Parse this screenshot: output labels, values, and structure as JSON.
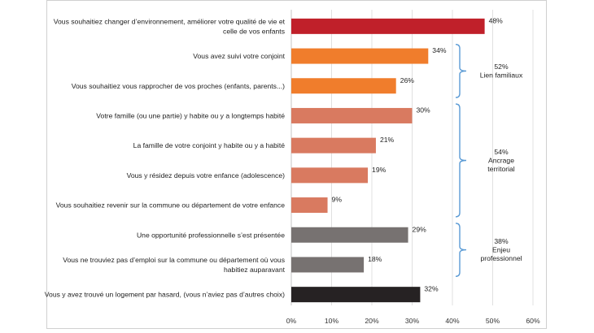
{
  "chart_data": {
    "type": "bar",
    "orientation": "horizontal",
    "categories": [
      [
        "Vous souhaitiez changer d’environnement, améliorer votre qualité de vie et",
        "celle de vos enfants"
      ],
      [
        "Vous avez suivi votre conjoint"
      ],
      [
        "Vous souhaitiez vous rapprocher de vos proches (enfants, parents...)"
      ],
      [
        "Votre famille (ou une partie) y habite ou y a longtemps habité"
      ],
      [
        "La famille de votre conjoint y habite ou y a habité"
      ],
      [
        "Vous y résidez depuis votre enfance (adolescence)"
      ],
      [
        "Vous souhaitiez revenir sur la commune ou département de votre enfance"
      ],
      [
        "Une opportunité professionnelle s’est présentée"
      ],
      [
        "Vous ne trouviez pas d’emploi sur la commune ou département où vous",
        "habitiez auparavant"
      ],
      [
        "Vous y avez trouvé un logement par hasard, (vous n’aviez pas d’autres choix)"
      ]
    ],
    "values": [
      48,
      34,
      26,
      30,
      21,
      19,
      9,
      29,
      18,
      32
    ],
    "value_labels": [
      "48%",
      "34%",
      "26%",
      "30%",
      "21%",
      "19%",
      "9%",
      "29%",
      "18%",
      "32%"
    ],
    "bar_colors": [
      "#c0202a",
      "#f07d2c",
      "#f07d2c",
      "#d97a60",
      "#d97a60",
      "#d97a60",
      "#d97a60",
      "#777271",
      "#777271",
      "#262223"
    ],
    "xlim": [
      0,
      60
    ],
    "x_ticks": [
      0,
      10,
      20,
      30,
      40,
      50,
      60
    ],
    "x_tick_labels": [
      "0%",
      "10%",
      "20%",
      "30%",
      "40%",
      "50%",
      "60%"
    ],
    "grid": "vertical",
    "groups": [
      {
        "start": 1,
        "end": 2,
        "lines": [
          "52%",
          "Lien familiaux"
        ]
      },
      {
        "start": 3,
        "end": 6,
        "lines": [
          "54%",
          "Ancrage",
          "territorial"
        ]
      },
      {
        "start": 7,
        "end": 8,
        "lines": [
          "38%",
          "Enjeu",
          "professionnel"
        ]
      }
    ],
    "bracket_color": "#5b9bd5"
  }
}
